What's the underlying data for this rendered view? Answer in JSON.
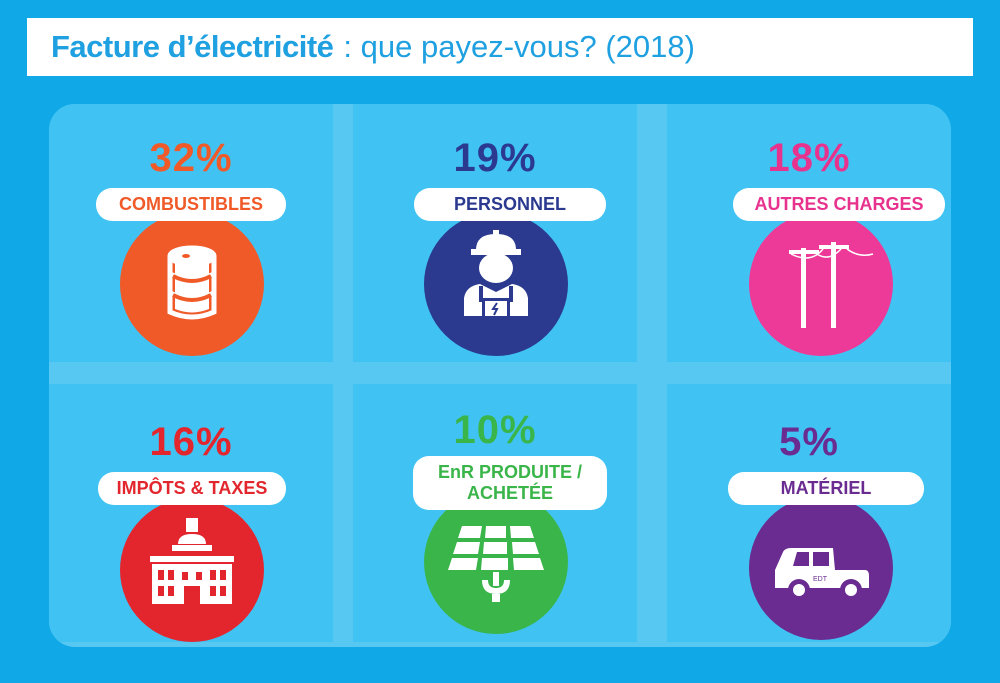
{
  "title": {
    "bold": "Facture d’électricité",
    "rest": ": que payez-vous? (2018)"
  },
  "colors": {
    "background": "#10a8e6",
    "combustibles": "#f05a28",
    "personnel": "#2b3a8f",
    "autres_charges": "#e8338e",
    "impots": "#e3262e",
    "enr": "#3ab54a",
    "materiel": "#6a2c91"
  },
  "cards": [
    {
      "percent": "32%",
      "label": "COMBUSTIBLES",
      "icon": "oil-barrel-icon"
    },
    {
      "percent": "19%",
      "label": "PERSONNEL",
      "icon": "worker-icon"
    },
    {
      "percent": "18%",
      "label": "AUTRES CHARGES",
      "icon": "power-pole-icon"
    },
    {
      "percent": "16%",
      "label": "IMPÔTS & TAXES",
      "icon": "government-building-icon"
    },
    {
      "percent": "10%",
      "label_line1": "EnR PRODUITE /",
      "label_line2": "ACHETÉE",
      "icon": "solar-panel-icon"
    },
    {
      "percent": "5%",
      "label": "MATÉRIEL",
      "icon": "utility-truck-icon",
      "truck_text": "EDT"
    }
  ]
}
